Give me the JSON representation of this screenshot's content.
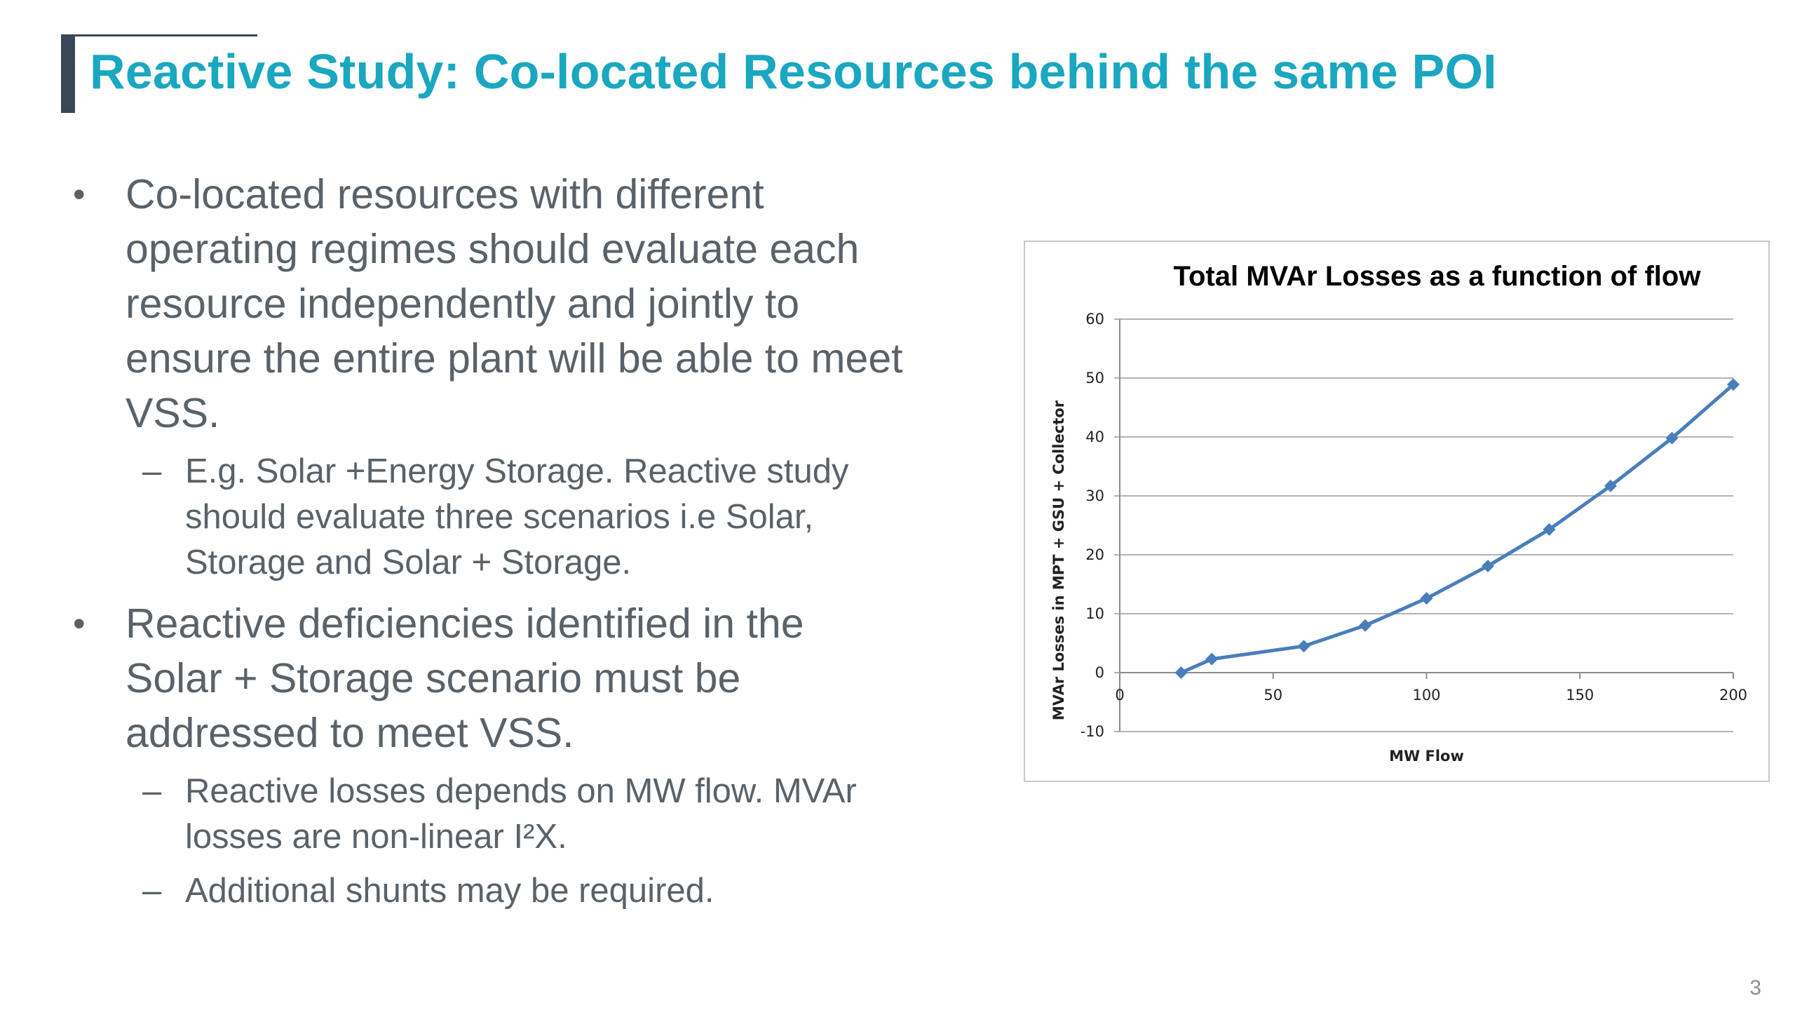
{
  "slide": {
    "title": "Reactive Study: Co-located Resources behind the same POI",
    "page_number": "3",
    "bullets": [
      {
        "marker": "•",
        "lines": [
          "Co-located resources with different",
          "operating regimes should evaluate each",
          "resource independently and jointly to",
          "ensure the entire plant will be able to meet",
          "VSS."
        ],
        "sub": [
          {
            "marker": "–",
            "lines": [
              "E.g. Solar +Energy Storage. Reactive study",
              "should evaluate three scenarios i.e Solar,",
              "Storage and Solar + Storage."
            ]
          }
        ]
      },
      {
        "marker": "•",
        "lines": [
          "Reactive deficiencies identified in the",
          "Solar + Storage scenario must be",
          "addressed to meet VSS."
        ],
        "sub": [
          {
            "marker": "–",
            "lines": [
              "Reactive losses depends on MW flow.  MVAr",
              "losses are non-linear I²X."
            ]
          },
          {
            "marker": "–",
            "lines": [
              "Additional shunts may be required."
            ]
          }
        ]
      }
    ]
  },
  "colors": {
    "title": "#1aa7c0",
    "body_text": "#5a6269",
    "accent_bar": "#3a4756",
    "series_line": "#4a7ebb",
    "gridline": "#b3b3b3"
  },
  "chart_data": {
    "type": "line",
    "title": "Total MVAr Losses as a function of flow",
    "xlabel": "MW Flow",
    "ylabel": "MVAr Losses in MPT + GSU + Collector",
    "xlim": [
      0,
      200
    ],
    "ylim": [
      -10,
      60
    ],
    "x_ticks": [
      0,
      50,
      100,
      150,
      200
    ],
    "y_ticks": [
      -10,
      0,
      10,
      20,
      30,
      40,
      50,
      60
    ],
    "grid": true,
    "legend": "none",
    "marker": "diamond",
    "series": [
      {
        "x": [
          20,
          30,
          60,
          80,
          100,
          120,
          140,
          160,
          180,
          200
        ],
        "y": [
          0,
          2.3,
          4.5,
          8,
          12.6,
          18.1,
          24.3,
          31.7,
          39.8,
          48.9
        ]
      }
    ]
  }
}
